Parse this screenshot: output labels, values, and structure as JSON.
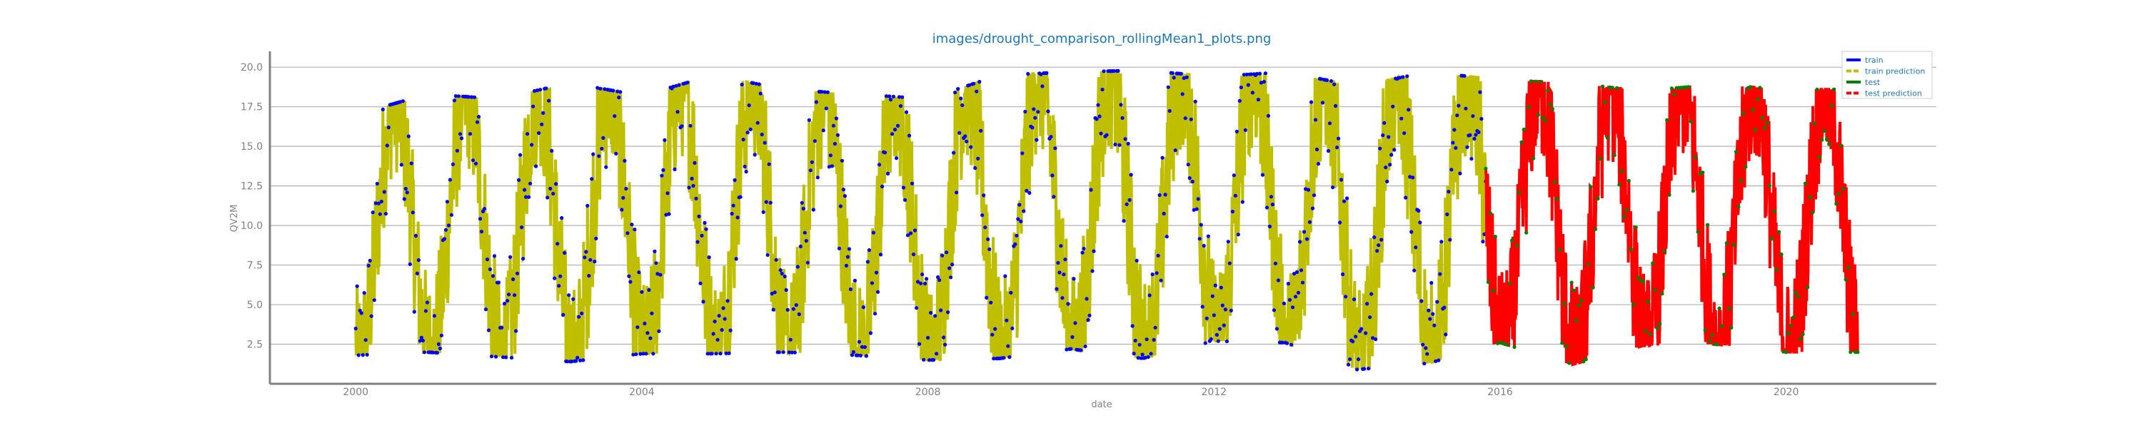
{
  "chart_data": {
    "type": "line",
    "title": "images/drought_comparison_rollingMean1_plots.png",
    "xlabel": "date",
    "ylabel": "QV2M",
    "xlim": [
      1998.8,
      2022.1
    ],
    "ylim": [
      0.0,
      21.0
    ],
    "x_ticks": [
      "2000",
      "2004",
      "2008",
      "2012",
      "2016",
      "2020"
    ],
    "y_ticks": [
      "2.5",
      "5.0",
      "7.5",
      "10.0",
      "12.5",
      "15.0",
      "17.5",
      "20.0"
    ],
    "grid": "horizontal",
    "legend_position": "top-right",
    "series": [
      {
        "name": "train",
        "color": "#0000ff",
        "x_range": [
          2000.0,
          2015.8
        ],
        "style": "markers"
      },
      {
        "name": "train prediction",
        "color": "#bfbf00",
        "x_range": [
          2000.0,
          2015.8
        ],
        "style": "dashed-line"
      },
      {
        "name": "test",
        "color": "#008000",
        "x_range": [
          2015.8,
          2021.0
        ],
        "style": "markers"
      },
      {
        "name": "test prediction",
        "color": "#ff0000",
        "x_range": [
          2015.8,
          2021.0
        ],
        "style": "dashed-line"
      }
    ],
    "seasonal_envelope": {
      "description": "daily values oscillate annually",
      "yearly_peaks": [
        {
          "year": 2000,
          "max": 17.0,
          "min": 1.8
        },
        {
          "year": 2001,
          "max": 18.3,
          "min": 2.0
        },
        {
          "year": 2002,
          "max": 18.0,
          "min": 1.7
        },
        {
          "year": 2003,
          "max": 19.0,
          "min": 1.4
        },
        {
          "year": 2004,
          "max": 18.2,
          "min": 1.9
        },
        {
          "year": 2005,
          "max": 19.5,
          "min": 1.9
        },
        {
          "year": 2006,
          "max": 18.6,
          "min": 2.0
        },
        {
          "year": 2007,
          "max": 18.3,
          "min": 1.8
        },
        {
          "year": 2008,
          "max": 18.0,
          "min": 1.5
        },
        {
          "year": 2009,
          "max": 19.5,
          "min": 1.6
        },
        {
          "year": 2010,
          "max": 19.7,
          "min": 2.2
        },
        {
          "year": 2011,
          "max": 19.8,
          "min": 1.6
        },
        {
          "year": 2012,
          "max": 19.4,
          "min": 2.7
        },
        {
          "year": 2013,
          "max": 19.7,
          "min": 2.6
        },
        {
          "year": 2014,
          "max": 18.8,
          "min": 0.9
        },
        {
          "year": 2015,
          "max": 19.7,
          "min": 1.3
        },
        {
          "year": 2016,
          "max": 19.2,
          "min": 2.6
        },
        {
          "year": 2017,
          "max": 19.0,
          "min": 1.2
        },
        {
          "year": 2018,
          "max": 18.5,
          "min": 2.4
        },
        {
          "year": 2019,
          "max": 18.9,
          "min": 2.5
        },
        {
          "year": 2020,
          "max": 18.6,
          "min": 2.0
        }
      ]
    }
  }
}
